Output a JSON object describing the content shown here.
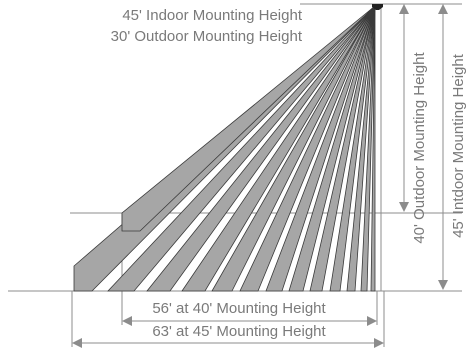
{
  "labels": {
    "indoor_top": "45' Indoor Mounting Height",
    "outdoor_top": "30' Outdoor Mounting Height",
    "outdoor_right": "40' Outdoor Mounting Height",
    "indoor_right": "45' Intdoor Mounting Height",
    "range_40": "56' at 40' Mounting Height",
    "range_45": "63' at 45' Mounting Height"
  },
  "colors": {
    "beam_fill": "#a6a6a6",
    "beam_stroke": "#3a3a3a",
    "guide_lines": "#8c8c8c",
    "text": "#7a7a7a"
  }
}
